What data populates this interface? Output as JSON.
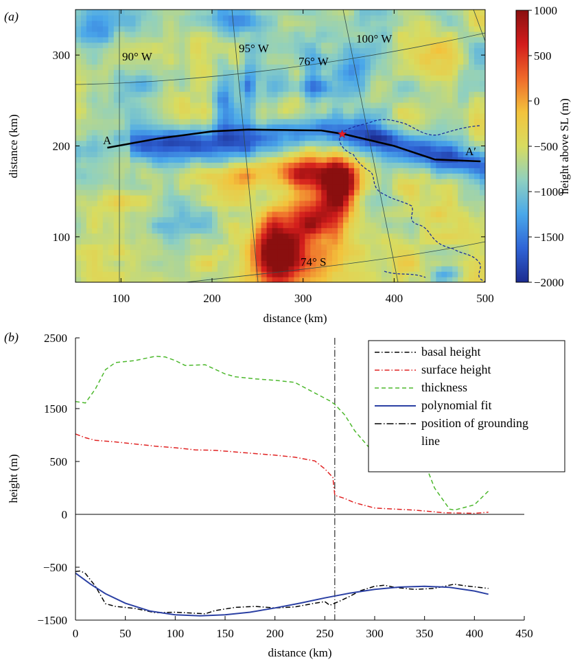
{
  "chart_data": [
    {
      "panel_label": "(a)",
      "type": "heatmap",
      "xlabel": "distance (km)",
      "ylabel": "distance (km)",
      "xlim": [
        50,
        500
      ],
      "ylim": [
        50,
        350
      ],
      "xticks": [
        100,
        200,
        300,
        400,
        500
      ],
      "yticks": [
        100,
        200,
        300
      ],
      "colorbar": {
        "label": "height above SL (m)",
        "range": [
          -2000,
          1000
        ],
        "ticks": [
          1000,
          500,
          0,
          -500,
          -1000,
          -1500,
          -2000
        ],
        "tick_labels": [
          "1000",
          "500",
          "0",
          "−500",
          "−1000",
          "−1500",
          "−2000"
        ],
        "colors": [
          "#1c2b8f",
          "#2f64d6",
          "#4aa8ea",
          "#8fd0c0",
          "#d8dc60",
          "#f3c33c",
          "#ef6a2a",
          "#d21c1c",
          "#8a0f0f"
        ]
      },
      "annotations": [
        "90° W",
        "95° W",
        "76° W",
        "100° W",
        "74° S",
        "A",
        "A′"
      ],
      "profile_line": {
        "x": [
          85,
          140,
          200,
          240,
          320,
          345,
          400,
          445,
          495
        ],
        "y": [
          198,
          208,
          216,
          218,
          217,
          213,
          200,
          185,
          183
        ]
      },
      "grounding_marker": {
        "x": 343,
        "y": 213
      }
    },
    {
      "panel_label": "(b)",
      "type": "line",
      "xlabel": "distance (km)",
      "ylabel": "height (m)",
      "xlim": [
        0,
        450
      ],
      "ylim": [
        -1500,
        2500
      ],
      "xticks": [
        0,
        50,
        100,
        150,
        200,
        250,
        300,
        350,
        400,
        450
      ],
      "xtick_labels": [
        "0",
        "50",
        "100",
        "150",
        "200",
        "250",
        "300",
        "350",
        "400",
        "450"
      ],
      "yticks": [
        2500,
        1500,
        500,
        0,
        -500,
        -1500
      ],
      "ytick_labels": [
        "2500",
        "1500",
        "500",
        "0",
        "−500",
        "−1500"
      ],
      "grounding_line_x": 260,
      "legend_position": "top-right",
      "legend": [
        {
          "label": "basal height",
          "color": "#000000",
          "dash": "7 3 1.5 3"
        },
        {
          "label": "surface height",
          "color": "#e02020",
          "dash": "7 3 1.5 3"
        },
        {
          "label": "thickness",
          "color": "#4cb82c",
          "dash": "6 4"
        },
        {
          "label": "polynomial fit",
          "color": "#2a3fa3",
          "dash": ""
        },
        {
          "label": "position of grounding",
          "color": "#000000",
          "dash": "10 3 1.5 3"
        },
        {
          "label": "line",
          "color": "",
          "dash": ""
        }
      ],
      "series": [
        {
          "name": "thickness",
          "x": [
            0,
            10,
            20,
            30,
            40,
            60,
            80,
            90,
            100,
            110,
            130,
            150,
            160,
            180,
            200,
            220,
            240,
            255,
            260,
            270,
            280,
            290,
            300,
            310,
            330,
            350,
            360,
            375,
            380,
            400,
            414
          ],
          "y": [
            1600,
            1580,
            1780,
            2050,
            2150,
            2180,
            2240,
            2230,
            2180,
            2110,
            2120,
            1990,
            1950,
            1920,
            1900,
            1870,
            1720,
            1610,
            1560,
            1380,
            1080,
            860,
            640,
            530,
            510,
            490,
            250,
            50,
            40,
            90,
            220
          ]
        },
        {
          "name": "surface height",
          "x": [
            0,
            10,
            20,
            40,
            60,
            80,
            100,
            120,
            140,
            160,
            180,
            200,
            220,
            240,
            250,
            258,
            260,
            270,
            280,
            300,
            340,
            370,
            400,
            414
          ],
          "y": [
            1020,
            950,
            900,
            870,
            830,
            790,
            760,
            720,
            710,
            680,
            650,
            620,
            580,
            510,
            430,
            350,
            180,
            150,
            110,
            60,
            40,
            15,
            10,
            20
          ]
        },
        {
          "name": "basal height",
          "x": [
            0,
            5,
            10,
            20,
            30,
            40,
            60,
            80,
            100,
            120,
            130,
            140,
            160,
            180,
            200,
            220,
            240,
            250,
            255,
            265,
            275,
            285,
            300,
            310,
            320,
            340,
            360,
            380,
            390,
            414
          ],
          "y": [
            -580,
            -570,
            -620,
            -860,
            -1190,
            -1240,
            -1280,
            -1360,
            -1350,
            -1370,
            -1380,
            -1320,
            -1260,
            -1240,
            -1270,
            -1250,
            -1180,
            -1150,
            -1220,
            -1140,
            -1050,
            -950,
            -860,
            -840,
            -880,
            -920,
            -900,
            -820,
            -850,
            -900
          ]
        },
        {
          "name": "polynomial fit",
          "x": [
            0,
            15,
            30,
            50,
            75,
            100,
            125,
            150,
            175,
            200,
            225,
            250,
            275,
            300,
            325,
            350,
            375,
            400,
            414
          ],
          "y": [
            -610,
            -820,
            -1000,
            -1180,
            -1330,
            -1400,
            -1420,
            -1400,
            -1350,
            -1270,
            -1180,
            -1080,
            -990,
            -920,
            -875,
            -860,
            -880,
            -950,
            -1010
          ]
        }
      ]
    }
  ]
}
